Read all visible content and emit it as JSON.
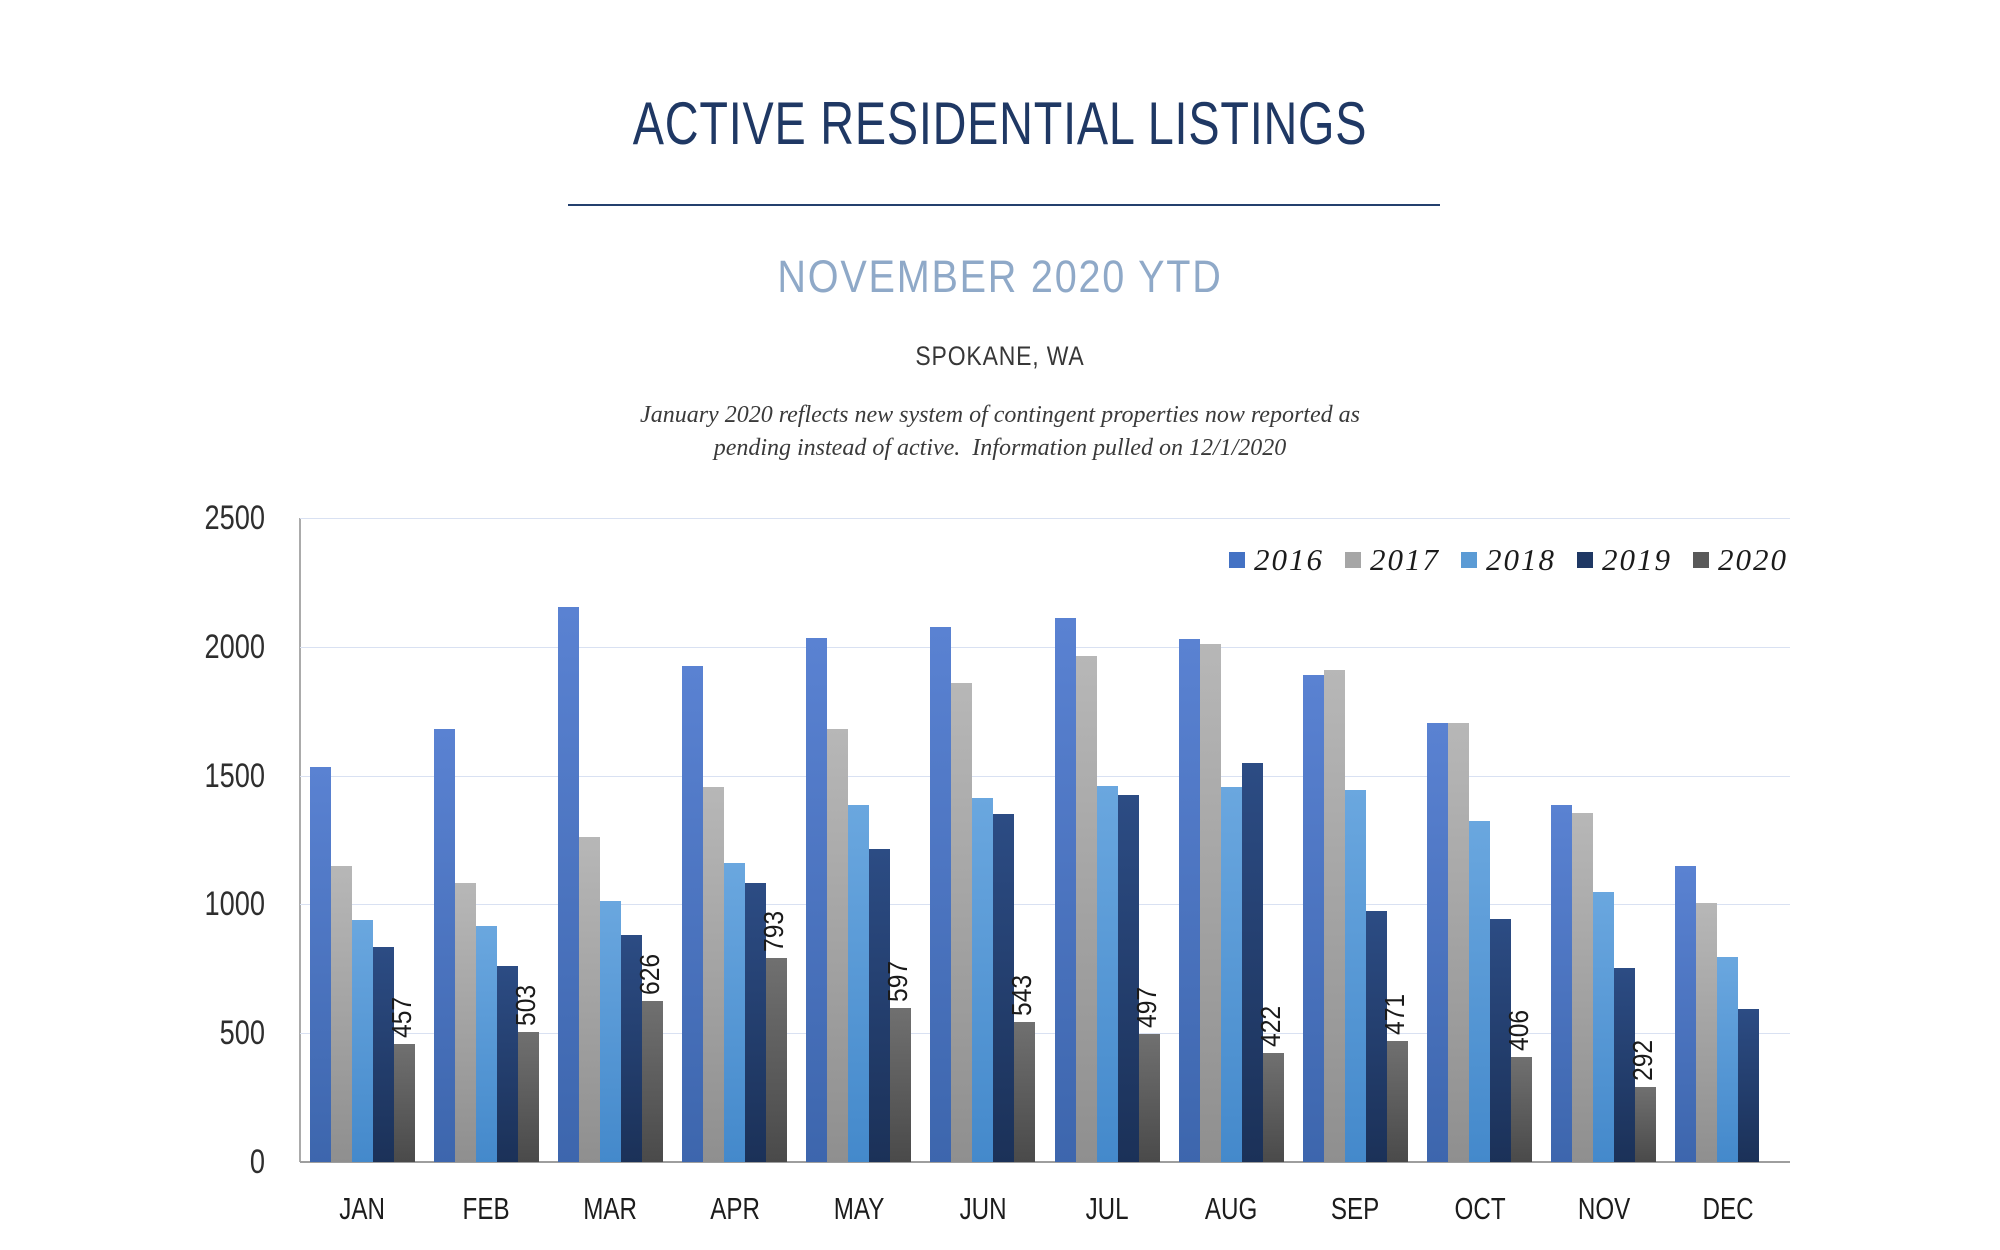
{
  "header": {
    "title": "ACTIVE RESIDENTIAL LISTINGS",
    "subtitle": "NOVEMBER 2020 YTD",
    "location": "SPOKANE, WA",
    "note_line1": "January 2020 reflects new system of contingent properties now reported as",
    "note_line2": "pending instead of active.  Information pulled on 12/1/2020"
  },
  "chart_data": {
    "type": "bar",
    "title": "ACTIVE RESIDENTIAL LISTINGS",
    "subtitle": "NOVEMBER 2020 YTD",
    "categories": [
      "JAN",
      "FEB",
      "MAR",
      "APR",
      "MAY",
      "JUN",
      "JUL",
      "AUG",
      "SEP",
      "OCT",
      "NOV",
      "DEC"
    ],
    "series": [
      {
        "name": "2016",
        "legend_color": "#4472C4",
        "fill_top": "#5A82D2",
        "fill_bottom": "#3D66AD",
        "values": [
          1535,
          1680,
          2155,
          1925,
          2035,
          2075,
          2110,
          2030,
          1890,
          1705,
          1385,
          1150
        ]
      },
      {
        "name": "2017",
        "legend_color": "#A6A6A6",
        "fill_top": "#B7B7B7",
        "fill_bottom": "#8F8F8F",
        "values": [
          1150,
          1085,
          1260,
          1455,
          1680,
          1860,
          1965,
          2010,
          1910,
          1705,
          1355,
          1005
        ]
      },
      {
        "name": "2018",
        "legend_color": "#5B9BD5",
        "fill_top": "#6AA7DF",
        "fill_bottom": "#4489CB",
        "values": [
          940,
          915,
          1015,
          1160,
          1385,
          1415,
          1460,
          1455,
          1445,
          1325,
          1050,
          795
        ]
      },
      {
        "name": "2019",
        "legend_color": "#1F3864",
        "fill_top": "#2C4C84",
        "fill_bottom": "#1B3158",
        "values": [
          835,
          760,
          880,
          1085,
          1215,
          1350,
          1425,
          1550,
          975,
          945,
          755,
          595
        ]
      },
      {
        "name": "2020",
        "legend_color": "#595959",
        "fill_top": "#707070",
        "fill_bottom": "#4A4A4A",
        "values": [
          457,
          503,
          626,
          793,
          597,
          543,
          497,
          422,
          471,
          406,
          292,
          null
        ]
      }
    ],
    "data_labels_series": "2020",
    "data_labels": [
      "457",
      "503",
      "626",
      "793",
      "597",
      "543",
      "497",
      "422",
      "471",
      "406",
      "292"
    ],
    "ylabel": "",
    "xlabel": "",
    "ylim": [
      0,
      2500
    ],
    "yticks": [
      0,
      500,
      1000,
      1500,
      2000,
      2500
    ],
    "grid": "horizontal",
    "gridline_color": "#D9E1F2",
    "axis_color": "#9E9E9E",
    "legend_position": "top-right"
  }
}
